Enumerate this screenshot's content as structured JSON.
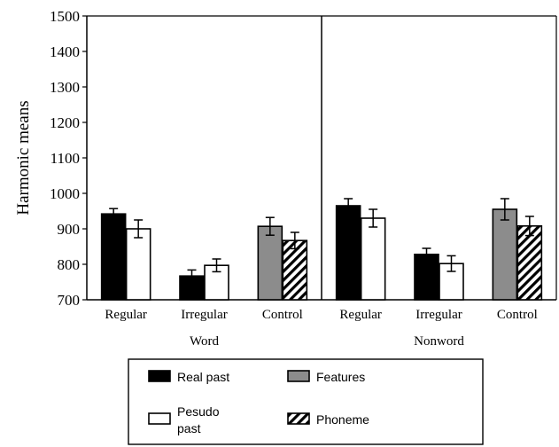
{
  "chart_data": {
    "type": "bar",
    "ylabel": "Harmonic means",
    "ylim": [
      700,
      1500
    ],
    "yticks": [
      700,
      800,
      900,
      1000,
      1100,
      1200,
      1300,
      1400,
      1500
    ],
    "panels": [
      {
        "label": "Word",
        "groups": [
          {
            "label": "Regular",
            "bars": [
              {
                "series": "Real past",
                "value": 942,
                "error": 15
              },
              {
                "series": "Pesudo past",
                "value": 900,
                "error": 25
              }
            ]
          },
          {
            "label": "Irregular",
            "bars": [
              {
                "series": "Real past",
                "value": 767,
                "error": 17
              },
              {
                "series": "Pesudo past",
                "value": 797,
                "error": 18
              }
            ]
          },
          {
            "label": "Control",
            "bars": [
              {
                "series": "Features",
                "value": 907,
                "error": 25
              },
              {
                "series": "Phoneme",
                "value": 867,
                "error": 23
              }
            ]
          }
        ]
      },
      {
        "label": "Nonword",
        "groups": [
          {
            "label": "Regular",
            "bars": [
              {
                "series": "Real past",
                "value": 965,
                "error": 20
              },
              {
                "series": "Pesudo past",
                "value": 930,
                "error": 25
              }
            ]
          },
          {
            "label": "Irregular",
            "bars": [
              {
                "series": "Real past",
                "value": 828,
                "error": 17
              },
              {
                "series": "Pesudo past",
                "value": 802,
                "error": 22
              }
            ]
          },
          {
            "label": "Control",
            "bars": [
              {
                "series": "Features",
                "value": 955,
                "error": 30
              },
              {
                "series": "Phoneme",
                "value": 908,
                "error": 27
              }
            ]
          }
        ]
      }
    ],
    "legend": {
      "placement": "bottom",
      "items": [
        {
          "key": "Real past",
          "lines": [
            "Real past"
          ],
          "fill": "black"
        },
        {
          "key": "Features",
          "lines": [
            "Features"
          ],
          "fill": "gray"
        },
        {
          "key": "Pesudo past",
          "lines": [
            "Pesudo",
            "past"
          ],
          "fill": "white"
        },
        {
          "key": "Phoneme",
          "lines": [
            "Phoneme"
          ],
          "fill": "hatch"
        }
      ]
    },
    "colors": {
      "Real past": "#000000",
      "Pesudo past": "#ffffff",
      "Features": "#8c8c8c",
      "Phoneme": "hatch"
    }
  }
}
